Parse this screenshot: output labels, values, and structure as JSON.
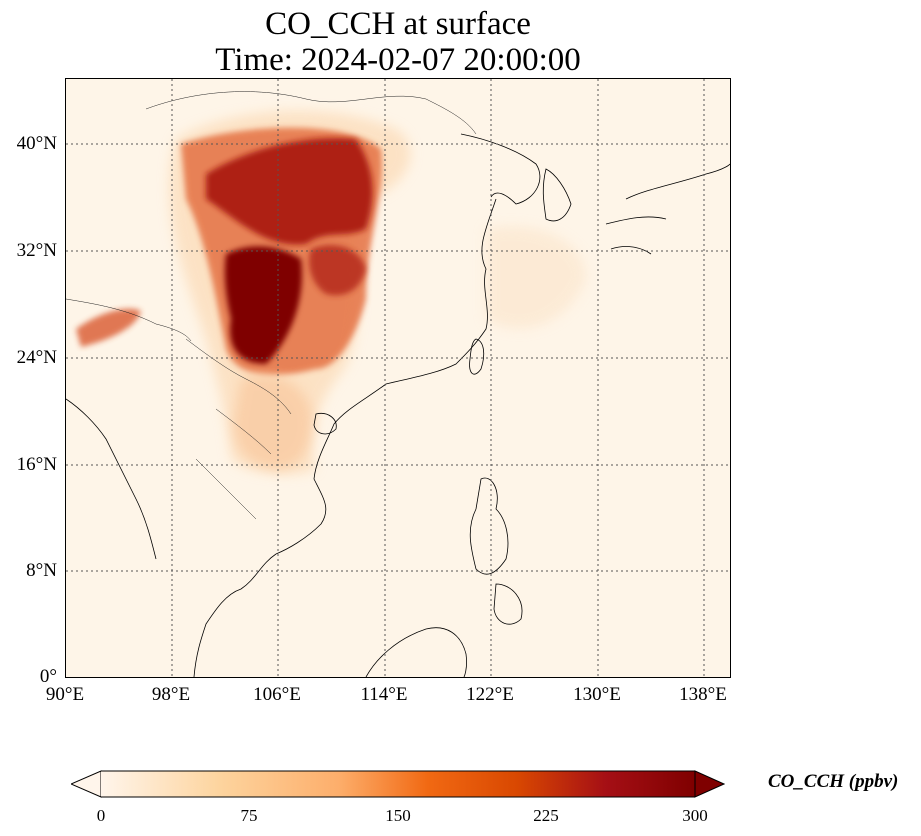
{
  "title": {
    "line1": "CO_CCH at surface",
    "line2": "Time: 2024-02-07 20:00:00"
  },
  "map": {
    "extent": {
      "lon_min": 90,
      "lon_max": 140,
      "lat_min": 0,
      "lat_max": 45
    },
    "lat_ticks": [
      "40°N",
      "32°N",
      "24°N",
      "16°N",
      "8°N",
      "0°"
    ],
    "lon_ticks": [
      "90°E",
      "98°E",
      "106°E",
      "114°E",
      "122°E",
      "130°E",
      "138°E"
    ],
    "gridlines": "dotted",
    "background_color": "#fef5e8"
  },
  "colorbar": {
    "label": "CO_CCH (ppbv)",
    "ticks": [
      "0",
      "75",
      "150",
      "225",
      "300"
    ],
    "colormap": [
      "#fff5eb",
      "#fdd49e",
      "#fdae6b",
      "#f16913",
      "#d94801",
      "#a50f15",
      "#7f0000"
    ],
    "extend": "both"
  }
}
